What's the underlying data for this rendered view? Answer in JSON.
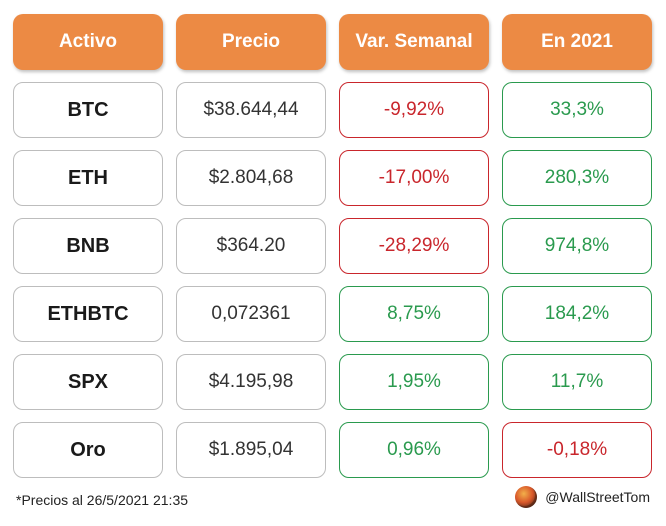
{
  "headers": {
    "asset": "Activo",
    "price": "Precio",
    "weekly": "Var. Semanal",
    "ytd": "En 2021"
  },
  "rows": [
    {
      "asset": "BTC",
      "price": "$38.644,44",
      "weekly": "-9,92%",
      "ytd": "33,3%",
      "weekly_status": "negative",
      "ytd_status": "positive"
    },
    {
      "asset": "ETH",
      "price": "$2.804,68",
      "weekly": "-17,00%",
      "ytd": "280,3%",
      "weekly_status": "negative",
      "ytd_status": "positive"
    },
    {
      "asset": "BNB",
      "price": "$364.20",
      "weekly": "-28,29%",
      "ytd": "974,8%",
      "weekly_status": "negative",
      "ytd_status": "positive"
    },
    {
      "asset": "ETHBTC",
      "price": "0,072361",
      "weekly": "8,75%",
      "ytd": "184,2%",
      "weekly_status": "positive",
      "ytd_status": "positive"
    },
    {
      "asset": "SPX",
      "price": "$4.195,98",
      "weekly": "1,95%",
      "ytd": "11,7%",
      "weekly_status": "positive",
      "ytd_status": "positive"
    },
    {
      "asset": "Oro",
      "price": "$1.895,04",
      "weekly": "0,96%",
      "ytd": "-0,18%",
      "weekly_status": "positive",
      "ytd_status": "negative"
    }
  ],
  "footnote": "*Precios al 26/5/2021 21:35",
  "brand": {
    "handle": "@WallStreetTom",
    "icon": "avatar-icon"
  },
  "colors": {
    "header": "#ec8a44",
    "negative": "#c9262c",
    "positive": "#2a9a4e",
    "neutral_border": "#bdbdbd"
  }
}
